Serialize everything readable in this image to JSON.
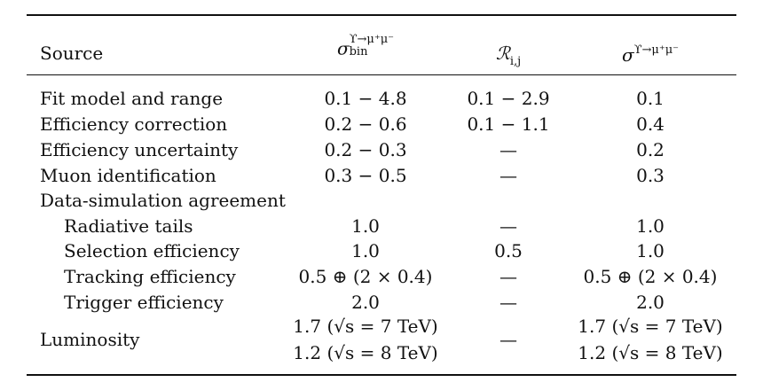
{
  "header": {
    "source": "Source",
    "col1": {
      "base": "σ",
      "sup": "ϒ→μ⁺μ⁻",
      "sub": "bin"
    },
    "col2": {
      "base": "ℛ",
      "sub": "i,j"
    },
    "col3": {
      "base": "σ",
      "sup": "ϒ→μ⁺μ⁻"
    }
  },
  "rows": [
    {
      "label": "Fit model and range",
      "c1": "0.1 − 4.8",
      "c2": "0.1 − 2.9",
      "c3": "0.1"
    },
    {
      "label": "Efficiency correction",
      "c1": "0.2 − 0.6",
      "c2": "0.1 − 1.1",
      "c3": "0.4"
    },
    {
      "label": "Efficiency uncertainty",
      "c1": "0.2 − 0.3",
      "c2": "—",
      "c3": "0.2"
    },
    {
      "label": "Muon identification",
      "c1": "0.3 − 0.5",
      "c2": "—",
      "c3": "0.3"
    },
    {
      "label": "Data-simulation agreement",
      "c1": "",
      "c2": "",
      "c3": ""
    },
    {
      "label": "Radiative tails",
      "c1": "1.0",
      "c2": "—",
      "c3": "1.0"
    },
    {
      "label": "Selection efficiency",
      "c1": "1.0",
      "c2": "0.5",
      "c3": "1.0"
    },
    {
      "label": "Tracking efficiency",
      "c1": "0.5 ⊕ (2 × 0.4)",
      "c2": "—",
      "c3": "0.5 ⊕ (2 × 0.4)"
    },
    {
      "label": "Trigger efficiency",
      "c1": "2.0",
      "c2": "—",
      "c3": "2.0"
    }
  ],
  "luminosity": {
    "label": "Luminosity",
    "c1_line1": "1.7 (√s = 7 TeV)",
    "c1_line2": "1.2 (√s = 8 TeV)",
    "c2": "—",
    "c3_line1": "1.7 (√s = 7 TeV)",
    "c3_line2": "1.2 (√s = 8 TeV)"
  }
}
